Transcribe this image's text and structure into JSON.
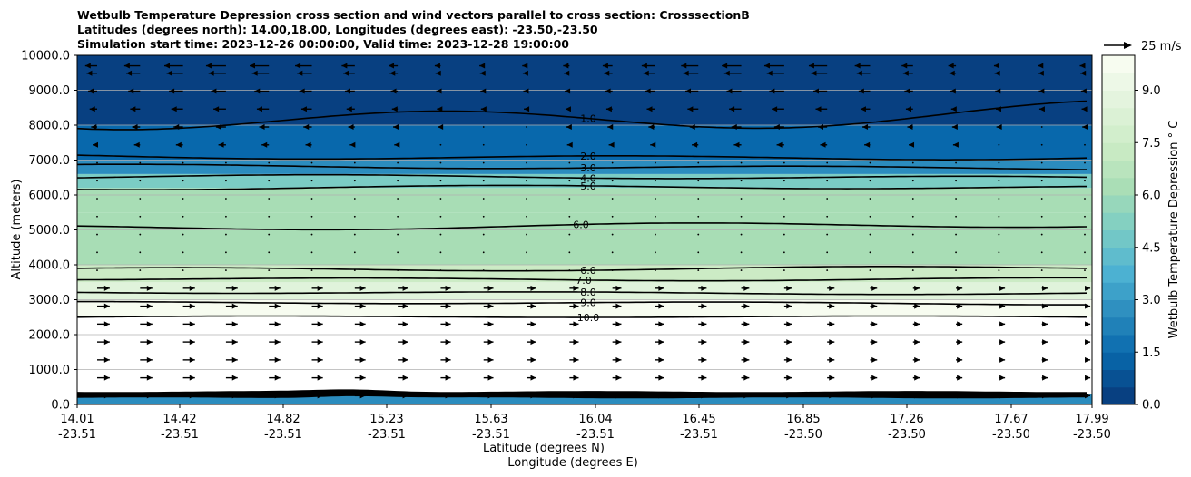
{
  "title_lines": [
    "Wetbulb Temperature Depression cross section and wind vectors parallel to cross section: CrosssectionB",
    "Latitudes (degrees north): 14.00,18.00, Longitudes (degrees east): -23.50,-23.50",
    "Simulation start time: 2023-12-26 00:00:00, Valid time: 2023-12-28 19:00:00"
  ],
  "chart_data": {
    "type": "heatmap",
    "title": "Wetbulb Temperature Depression cross section and wind vectors parallel to cross section: CrosssectionB",
    "ylabel": "Altitude (meters)",
    "xlabel_lat": "Latitude (degrees N)",
    "xlabel_lon": "Longitude (degrees E)",
    "ylim": [
      0,
      10000
    ],
    "yticks": [
      "0.0",
      "1000.0",
      "2000.0",
      "3000.0",
      "4000.0",
      "5000.0",
      "6000.0",
      "7000.0",
      "8000.0",
      "9000.0",
      "10000.0"
    ],
    "xticks": [
      {
        "lat": "14.01",
        "lon": "-23.51"
      },
      {
        "lat": "14.42",
        "lon": "-23.51"
      },
      {
        "lat": "14.82",
        "lon": "-23.51"
      },
      {
        "lat": "15.23",
        "lon": "-23.51"
      },
      {
        "lat": "15.63",
        "lon": "-23.51"
      },
      {
        "lat": "16.04",
        "lon": "-23.51"
      },
      {
        "lat": "16.45",
        "lon": "-23.51"
      },
      {
        "lat": "16.85",
        "lon": "-23.50"
      },
      {
        "lat": "17.26",
        "lon": "-23.50"
      },
      {
        "lat": "17.67",
        "lon": "-23.50"
      },
      {
        "lat": "17.99",
        "lon": "-23.50"
      }
    ],
    "grid": "horizontal",
    "colorbar": {
      "label": "Wetbulb Temperature Depression ° C",
      "ticks": [
        "0.0",
        "1.5",
        "3.0",
        "4.5",
        "6.0",
        "7.5",
        "9.0"
      ],
      "range": [
        0,
        10
      ],
      "colors": [
        "#084081",
        "#0868ac",
        "#2b8cbe",
        "#4eb3d3",
        "#7bccc4",
        "#a8ddb5",
        "#ccebc5",
        "#e0f3db",
        "#f7fcf0"
      ]
    },
    "contour_labels": [
      "1.0",
      "2.0",
      "3.0",
      "4.0",
      "5.0",
      "6.0",
      "7.0",
      "8.0",
      "9.0",
      "10.0"
    ],
    "vector_key": {
      "label": "25 m/s",
      "speed": 25
    },
    "bands": [
      {
        "from": 0,
        "to": 300,
        "value": 3.0
      },
      {
        "from": 300,
        "to": 2500,
        "value": 10.0
      },
      {
        "from": 2500,
        "to": 3000,
        "value": 9.5
      },
      {
        "from": 3000,
        "to": 3500,
        "value": 8.0
      },
      {
        "from": 3500,
        "to": 4000,
        "value": 7.0
      },
      {
        "from": 4000,
        "to": 5500,
        "value": 6.0
      },
      {
        "from": 5500,
        "to": 6200,
        "value": 6.5
      },
      {
        "from": 6200,
        "to": 6600,
        "value": 4.5
      },
      {
        "from": 6600,
        "to": 7000,
        "value": 3.0
      },
      {
        "from": 7000,
        "to": 8000,
        "value": 1.2
      },
      {
        "from": 8000,
        "to": 10000,
        "value": 0.6
      }
    ]
  }
}
